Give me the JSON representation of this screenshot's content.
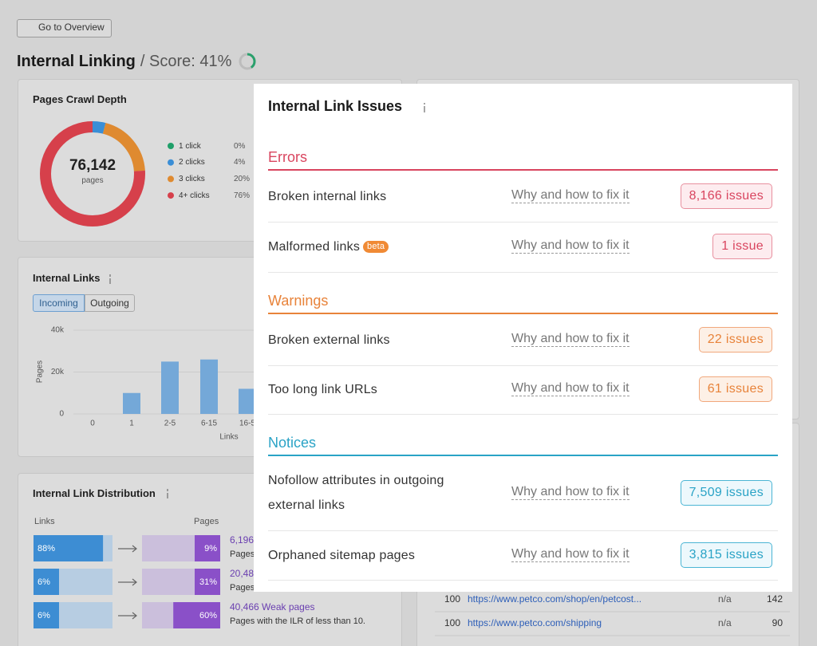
{
  "header": {
    "back_button": "Go to Overview",
    "title": "Internal Linking",
    "score": "/ Score: 41%"
  },
  "crawl_depth": {
    "title": "Pages Crawl Depth",
    "total": "76,142",
    "total_label": "pages",
    "legend": [
      {
        "label": "1 click",
        "value": 0,
        "value_label": "0%",
        "color": "#1f9f69"
      },
      {
        "label": "2 clicks",
        "value": 4,
        "value_label": "4%",
        "color": "#3a8ed6"
      },
      {
        "label": "3 clicks",
        "value": 20,
        "value_label": "20%",
        "color": "#df8a30"
      },
      {
        "label": "4+ clicks",
        "value": 76,
        "value_label": "76%",
        "color": "#d6404b"
      }
    ]
  },
  "internal_links": {
    "title": "Internal Links",
    "tabs": [
      "Incoming",
      "Outgoing"
    ],
    "chart": {
      "type": "bar",
      "categories": [
        "0",
        "1",
        "2-5",
        "6-15",
        "16-5"
      ],
      "values": [
        0,
        10000,
        25000,
        26000,
        12000
      ],
      "color": "#74a8d8",
      "ylim": [
        0,
        40000
      ],
      "yticks": [
        0,
        {
          "value": 20000,
          "label": "20k"
        },
        {
          "value": 40000,
          "label": "40k"
        }
      ],
      "y_label": "Pages",
      "x_label": "Links"
    }
  },
  "distribution": {
    "title": "Internal Link Distribution",
    "links_header": "Links",
    "pages_header": "Pages",
    "rows": [
      {
        "links_value": 88,
        "links_label": "88%",
        "pages_value": 9,
        "pages_label": "9%",
        "count": "6,196",
        "description": "Pages"
      },
      {
        "links_value": 6,
        "links_label": "6%",
        "pages_value": 31,
        "pages_label": "31%",
        "count": "20,48",
        "description": "Pages"
      },
      {
        "links_value": 6,
        "links_label": "6%",
        "pages_value": 60,
        "pages_label": "60%",
        "count": "40,466 Weak pages",
        "description": "Pages with the ILR of less than 10."
      }
    ]
  },
  "table": {
    "rows": [
      [
        "100",
        "https://www.petco.com/shop/en/petcost...",
        "n/a",
        "142"
      ],
      [
        "100",
        "https://www.petco.com/shipping",
        "n/a",
        "90"
      ]
    ]
  },
  "issues_panel": {
    "title": "Internal Link Issues",
    "sections": [
      {
        "name": "Errors",
        "color": "#d9455f",
        "badge_fill": "#fdecef",
        "badge_border": "#e8909f",
        "items": [
          {
            "label": "Broken internal links",
            "fix": "Why and how to fix it",
            "count": "8,166 issues"
          },
          {
            "label": "Malformed links",
            "tag": "beta",
            "fix": "Why and how to fix it",
            "count": "1 issue"
          }
        ]
      },
      {
        "name": "Warnings",
        "color": "#e8833a",
        "badge_fill": "#fdf0e6",
        "badge_border": "#f1a87c",
        "items": [
          {
            "label": "Broken external links",
            "fix": "Why and how to fix it",
            "count": "22 issues"
          },
          {
            "label": "Too long link URLs",
            "fix": "Why and how to fix it",
            "count": "61 issues"
          }
        ]
      },
      {
        "name": "Notices",
        "color": "#2aa3c6",
        "badge_fill": "#edf8fc",
        "badge_border": "#4bb5d4",
        "items": [
          {
            "label": "Nofollow attributes in outgoing external links",
            "fix": "Why and how to fix it",
            "count": "7,509 issues"
          },
          {
            "label": "Orphaned sitemap pages",
            "fix": "Why and how to fix it",
            "count": "3,815 issues"
          }
        ]
      }
    ]
  }
}
